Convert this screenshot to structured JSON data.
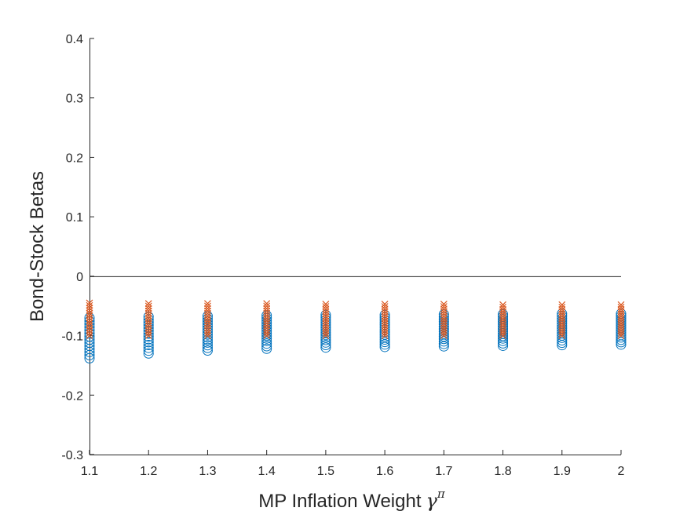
{
  "chart_data": {
    "type": "scatter",
    "xlabel": "MP Inflation Weight",
    "xlabel_symbol": "γ",
    "xlabel_superscript": "π",
    "ylabel": "Bond-Stock Betas",
    "xlim": [
      1.1,
      2.0
    ],
    "ylim": [
      -0.3,
      0.4
    ],
    "x_ticks": [
      "1.1",
      "1.2",
      "1.3",
      "1.4",
      "1.5",
      "1.6",
      "1.7",
      "1.8",
      "1.9",
      "2"
    ],
    "y_ticks": [
      "-0.3",
      "-0.2",
      "-0.1",
      "0",
      "0.1",
      "0.2",
      "0.3",
      "0.4"
    ],
    "grid": false,
    "reference_line_y": 0,
    "series": [
      {
        "marker": "circle",
        "color": "#0072BD",
        "x": [
          1.1,
          1.2,
          1.3,
          1.4,
          1.5,
          1.6,
          1.7,
          1.8,
          1.9,
          2.0
        ],
        "y_min": [
          -0.138,
          -0.13,
          -0.125,
          -0.122,
          -0.12,
          -0.119,
          -0.118,
          -0.117,
          -0.116,
          -0.115
        ],
        "y_max": [
          -0.07,
          -0.068,
          -0.067,
          -0.066,
          -0.065,
          -0.065,
          -0.064,
          -0.064,
          -0.063,
          -0.063
        ]
      },
      {
        "marker": "x",
        "color": "#D95319",
        "x": [
          1.1,
          1.2,
          1.3,
          1.4,
          1.5,
          1.6,
          1.7,
          1.8,
          1.9,
          2.0
        ],
        "y_min": [
          -0.1,
          -0.1,
          -0.1,
          -0.1,
          -0.1,
          -0.1,
          -0.1,
          -0.1,
          -0.1,
          -0.1
        ],
        "y_max": [
          -0.045,
          -0.046,
          -0.046,
          -0.046,
          -0.047,
          -0.047,
          -0.047,
          -0.048,
          -0.048,
          -0.048
        ]
      }
    ]
  }
}
